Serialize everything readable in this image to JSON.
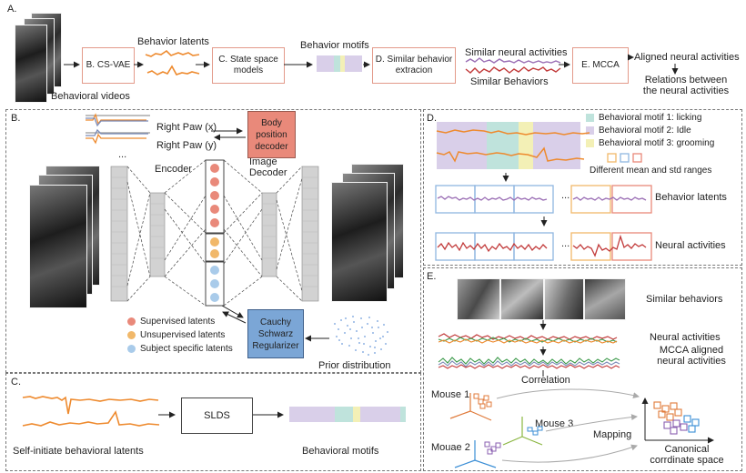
{
  "panelA": {
    "letter": "A.",
    "videos_label": "Behavioral videos",
    "csvae": "B. CS-VAE",
    "latents_label": "Behavior latents",
    "ssm": "C. State space models",
    "motifs_label": "Behavior motifs",
    "similar_box": "D. Similar behavior extracion",
    "similar_neural": "Similar neural activities",
    "similar_behaviors": "Similar Behaviors",
    "mcca": "E. MCCA",
    "aligned": "Aligned neural activities",
    "relations": "Relations between the neural activities"
  },
  "panelB": {
    "letter": "B.",
    "right_paw_x": "Right Paw (x)",
    "right_paw_y": "Right Paw (y)",
    "dots": "...",
    "encoder": "Encoder",
    "image_decoder": "Image Decoder",
    "body_decoder": "Body position decoder",
    "regularizer": "Cauchy Schwarz Regularizer",
    "prior": "Prior distribution",
    "legend": [
      {
        "label": "Supervised latents",
        "color": "#e9897a"
      },
      {
        "label": "Unsupervised latents",
        "color": "#f1b86a"
      },
      {
        "label": "Subject specific latents",
        "color": "#a9cbea"
      }
    ]
  },
  "panelC": {
    "letter": "C.",
    "slds": "SLDS",
    "latents_label": "Self-initiate behavioral latents",
    "motifs_label": "Behavioral motifs"
  },
  "panelD": {
    "letter": "D.",
    "legend": [
      {
        "label": "Behavioral motif 1: licking",
        "color": "#bfe3dc"
      },
      {
        "label": "Behavioral motif 2: Idle",
        "color": "#d9cfe9"
      },
      {
        "label": "Behavioral motif 3: grooming",
        "color": "#f3f0b6"
      }
    ],
    "ranges_label": "Different mean and std ranges",
    "behavior_latents": "Behavior latents",
    "neural_activities": "Neural activities",
    "dots": "..."
  },
  "panelE": {
    "letter": "E.",
    "similar_behaviors": "Similar behaviors",
    "neural_activities": "Neural activities",
    "mcca_aligned": "MCCA aligned neural activities",
    "correlation": "Correlation",
    "mouse1": "Mouse 1",
    "mouse2": "Mouae 2",
    "mouse3": "Mouse 3",
    "mapping": "Mapping",
    "canonical": "Canonical corrdinate space"
  },
  "colors": {
    "orange": "#ee8a2e",
    "purple": "#9b6fb5",
    "red": "#c23b3b",
    "blue_box": "#8fb6e0",
    "salmon": "#e9897a",
    "regularizer": "#7ba6d6"
  }
}
